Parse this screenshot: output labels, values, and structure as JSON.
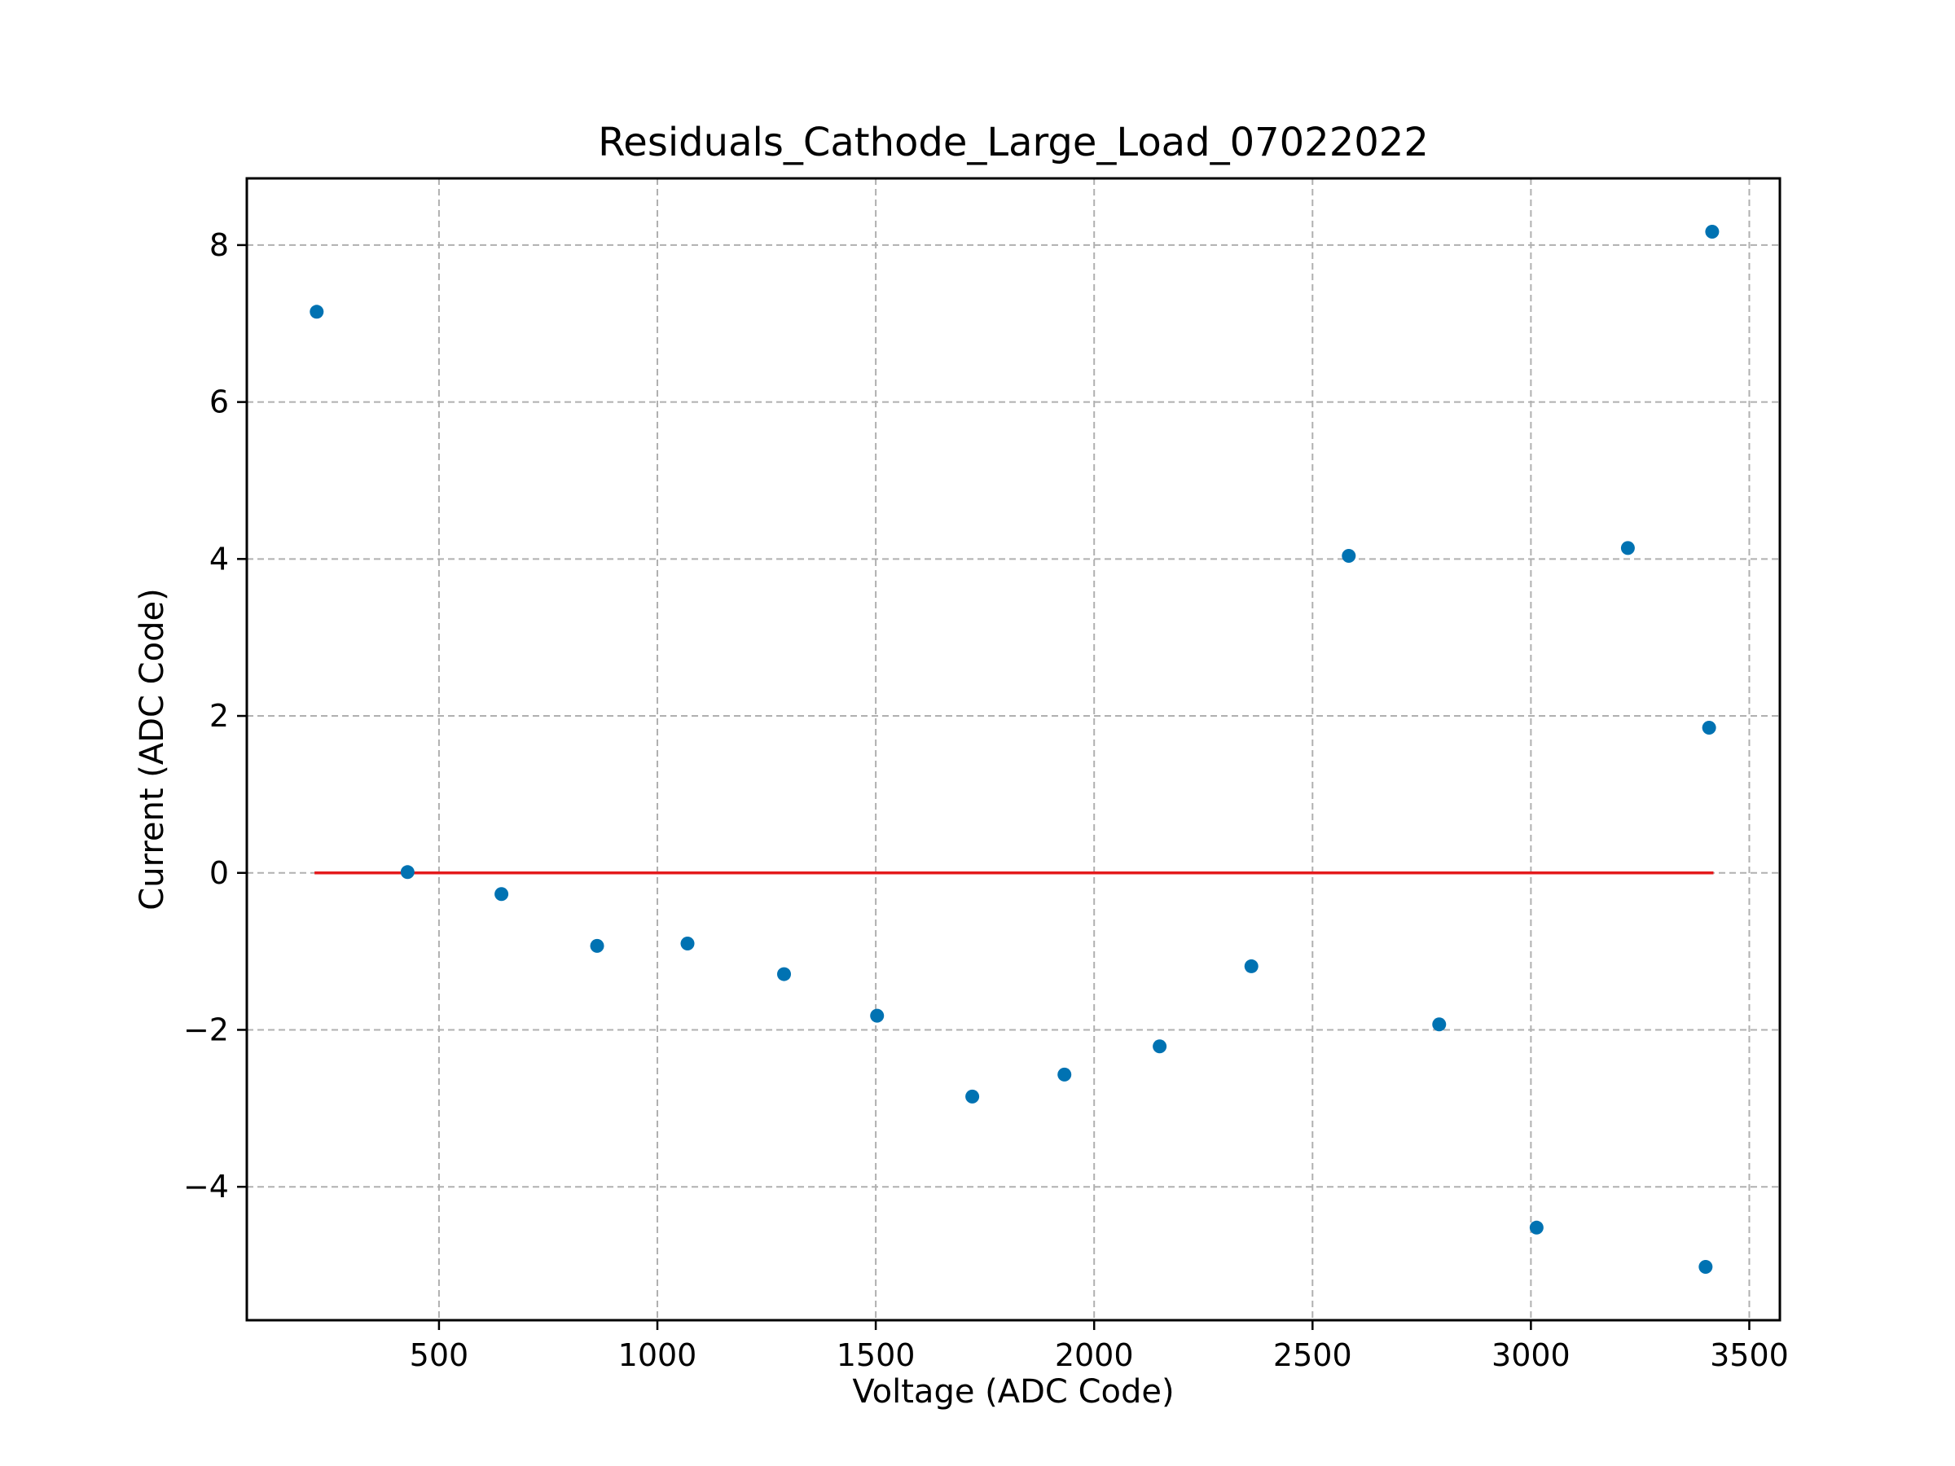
{
  "chart_data": {
    "type": "scatter",
    "title": "Residuals_Cathode_Large_Load_07022022",
    "xlabel": "Voltage (ADC Code)",
    "ylabel": "Current (ADC Code)",
    "xlim": [
      60,
      3570
    ],
    "ylim": [
      -5.7,
      8.85
    ],
    "xticks": [
      500,
      1000,
      1500,
      2000,
      2500,
      3000,
      3500
    ],
    "xtick_labels": [
      "500",
      "1000",
      "1500",
      "2000",
      "2500",
      "3000",
      "3500"
    ],
    "yticks": [
      -4,
      -2,
      0,
      2,
      4,
      6,
      8
    ],
    "ytick_labels": [
      "−4",
      "−2",
      "0",
      "2",
      "4",
      "6",
      "8"
    ],
    "grid": true,
    "series": [
      {
        "color": "#0072b2",
        "x": [
          220,
          428,
          643,
          862,
          1069,
          1290,
          1503,
          1721,
          1932,
          2150,
          2360,
          2583,
          2790,
          3013,
          3222,
          3400,
          3408,
          3415
        ],
        "y": [
          7.15,
          0.01,
          -0.27,
          -0.93,
          -0.9,
          -1.29,
          -1.82,
          -2.85,
          -2.57,
          -2.21,
          -1.19,
          4.04,
          -1.93,
          -4.52,
          4.14,
          -5.02,
          1.85,
          8.17
        ]
      }
    ],
    "reference_line": {
      "color": "#e41a1c",
      "x": [
        215,
        3418
      ],
      "y": [
        0,
        0
      ]
    }
  }
}
